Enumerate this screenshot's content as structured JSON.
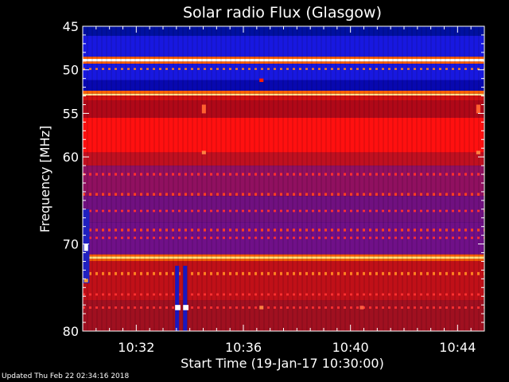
{
  "chart_data": {
    "type": "heatmap",
    "title": "Solar radio Flux (Glasgow)",
    "xlabel": "Start Time (19-Jan-17 10:30:00)",
    "ylabel": "Frequency [MHz]",
    "x_unit": "minutes after 10:30:00",
    "xlim": [
      0,
      15
    ],
    "ylim": [
      45,
      80
    ],
    "y_inverted": true,
    "x_ticks": [
      {
        "value": 2,
        "label": "10:32"
      },
      {
        "value": 6,
        "label": "10:36"
      },
      {
        "value": 10,
        "label": "10:40"
      },
      {
        "value": 14,
        "label": "10:44"
      }
    ],
    "y_ticks": [
      {
        "value": 45,
        "label": "45"
      },
      {
        "value": 50,
        "label": "50"
      },
      {
        "value": 55,
        "label": "55"
      },
      {
        "value": 60,
        "label": "60"
      },
      {
        "value": 70,
        "label": "70"
      },
      {
        "value": 80,
        "label": "80"
      }
    ],
    "colormap": [
      "#000000",
      "#2020d0",
      "#8010a0",
      "#c00010",
      "#ff2000",
      "#ff9030",
      "#ffffff"
    ],
    "frequency_bands": [
      {
        "f0": 45.0,
        "f1": 46.1,
        "color": "#0010a0"
      },
      {
        "f0": 46.1,
        "f1": 48.5,
        "color": "#1818e0"
      },
      {
        "f0": 48.5,
        "f1": 48.75,
        "color": "#ff6000"
      },
      {
        "f0": 48.75,
        "f1": 49.05,
        "color": "#ffffff"
      },
      {
        "f0": 49.05,
        "f1": 49.3,
        "color": "#ff6000"
      },
      {
        "f0": 49.3,
        "f1": 51.2,
        "color": "#1818e0"
      },
      {
        "f0": 51.2,
        "f1": 52.4,
        "color": "#0808b0"
      },
      {
        "f0": 52.4,
        "f1": 52.75,
        "color": "#ff6000"
      },
      {
        "f0": 52.75,
        "f1": 52.95,
        "color": "#ffe090"
      },
      {
        "f0": 52.95,
        "f1": 53.5,
        "color": "#d01010"
      },
      {
        "f0": 53.5,
        "f1": 55.5,
        "color": "#b00818"
      },
      {
        "f0": 55.5,
        "f1": 59.5,
        "color": "#ff1010"
      },
      {
        "f0": 59.5,
        "f1": 61.0,
        "color": "#c01020"
      },
      {
        "f0": 61.0,
        "f1": 64.5,
        "color": "#901060"
      },
      {
        "f0": 64.5,
        "f1": 67.5,
        "color": "#701080"
      },
      {
        "f0": 67.5,
        "f1": 71.2,
        "color": "#701088"
      },
      {
        "f0": 71.2,
        "f1": 71.45,
        "color": "#ff6000"
      },
      {
        "f0": 71.45,
        "f1": 71.7,
        "color": "#ffe080"
      },
      {
        "f0": 71.7,
        "f1": 71.95,
        "color": "#ff6000"
      },
      {
        "f0": 71.95,
        "f1": 76.5,
        "color": "#c01018"
      },
      {
        "f0": 76.5,
        "f1": 80.0,
        "color": "#a01020"
      }
    ],
    "dashed_lines": [
      {
        "f": 49.9,
        "color": "#ff8020",
        "width": 0.2
      },
      {
        "f": 62.0,
        "color": "#ff3030",
        "width": 0.3
      },
      {
        "f": 64.3,
        "color": "#ff4020",
        "width": 0.3
      },
      {
        "f": 66.2,
        "color": "#ff3030",
        "width": 0.25
      },
      {
        "f": 68.4,
        "color": "#ff4020",
        "width": 0.3
      },
      {
        "f": 69.3,
        "color": "#ff3030",
        "width": 0.25
      },
      {
        "f": 73.4,
        "color": "#ff8020",
        "width": 0.35
      },
      {
        "f": 75.8,
        "color": "#ff3030",
        "width": 0.25
      },
      {
        "f": 77.3,
        "color": "#ff3030",
        "width": 0.25
      }
    ],
    "bursts": [
      {
        "t0": 0.0,
        "t1": 0.25,
        "f0": 66.0,
        "f1": 74.5,
        "color": "#2020c0"
      },
      {
        "t0": 0.05,
        "t1": 0.2,
        "f0": 70.0,
        "f1": 70.8,
        "color": "#ffffff"
      },
      {
        "t0": 0.05,
        "t1": 0.2,
        "f0": 74.0,
        "f1": 74.4,
        "color": "#ffa030"
      },
      {
        "t0": 3.45,
        "t1": 3.6,
        "f0": 72.5,
        "f1": 80.0,
        "color": "#1818c0"
      },
      {
        "t0": 3.75,
        "t1": 3.9,
        "f0": 72.5,
        "f1": 80.0,
        "color": "#1818c0"
      },
      {
        "t0": 3.45,
        "t1": 3.65,
        "f0": 77.0,
        "f1": 77.6,
        "color": "#ffffff"
      },
      {
        "t0": 3.75,
        "t1": 3.95,
        "f0": 77.0,
        "f1": 77.6,
        "color": "#ffffff"
      },
      {
        "t0": 4.45,
        "t1": 4.6,
        "f0": 54.0,
        "f1": 55.0,
        "color": "#ff6030"
      },
      {
        "t0": 4.45,
        "t1": 4.6,
        "f0": 59.3,
        "f1": 59.7,
        "color": "#ff8040"
      },
      {
        "t0": 6.6,
        "t1": 6.75,
        "f0": 51.0,
        "f1": 51.4,
        "color": "#ff2000"
      },
      {
        "t0": 6.6,
        "t1": 6.75,
        "f0": 77.1,
        "f1": 77.5,
        "color": "#ff8040"
      },
      {
        "t0": 10.35,
        "t1": 10.5,
        "f0": 77.1,
        "f1": 77.5,
        "color": "#ff6040"
      },
      {
        "t0": 14.7,
        "t1": 14.85,
        "f0": 54.0,
        "f1": 55.0,
        "color": "#ff6030"
      },
      {
        "t0": 14.7,
        "t1": 14.85,
        "f0": 59.3,
        "f1": 59.7,
        "color": "#ff8040"
      }
    ]
  },
  "footer": {
    "updated": "Updated Thu Feb 22 02:34:16 2018"
  },
  "colors": {
    "background": "#000000",
    "text": "#ffffff"
  }
}
